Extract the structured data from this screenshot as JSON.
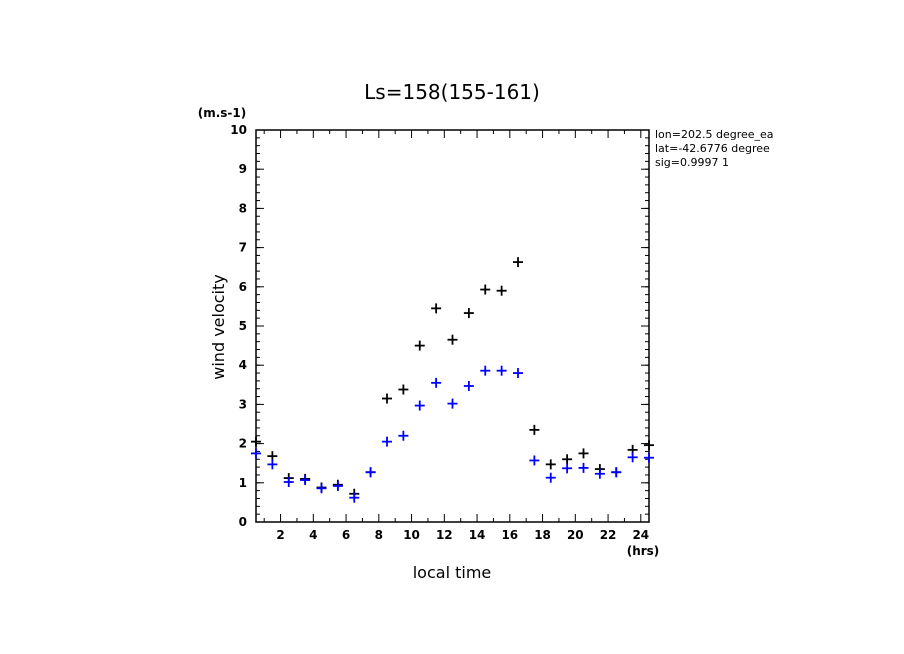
{
  "chart_data": {
    "type": "scatter",
    "title": "Ls=158(155-161)",
    "xlabel": "local time",
    "ylabel": "wind velocity",
    "x_unit": "(hrs)",
    "y_unit": "(m.s-1)",
    "xlim": [
      0.5,
      24.5
    ],
    "ylim": [
      0,
      10
    ],
    "x_ticks": [
      2,
      4,
      6,
      8,
      10,
      12,
      14,
      16,
      18,
      20,
      22,
      24
    ],
    "y_ticks": [
      0,
      1,
      2,
      3,
      4,
      5,
      6,
      7,
      8,
      9,
      10
    ],
    "annotations": [
      "lon=202.5 degree_ea",
      "lat=-42.6776 degree",
      "sig=0.9997 1"
    ],
    "series": [
      {
        "color": "#000000",
        "x": [
          0.5,
          1.5,
          2.5,
          3.5,
          4.5,
          5.5,
          6.5,
          7.5,
          8.5,
          9.5,
          10.5,
          11.5,
          12.5,
          13.5,
          14.5,
          15.5,
          16.5,
          17.5,
          18.5,
          19.5,
          20.5,
          21.5,
          22.5,
          23.5,
          24.5
        ],
        "values": [
          2.05,
          1.68,
          1.12,
          1.1,
          0.88,
          0.95,
          0.72,
          1.27,
          3.15,
          3.38,
          4.5,
          5.45,
          4.65,
          5.33,
          5.93,
          5.9,
          6.63,
          2.35,
          1.47,
          1.6,
          1.75,
          1.35,
          1.27,
          1.84,
          1.96
        ]
      },
      {
        "color": "#0000ff",
        "x": [
          0.5,
          1.5,
          2.5,
          3.5,
          4.5,
          5.5,
          6.5,
          7.5,
          8.5,
          9.5,
          10.5,
          11.5,
          12.5,
          13.5,
          14.5,
          15.5,
          16.5,
          17.5,
          18.5,
          19.5,
          20.5,
          21.5,
          22.5,
          23.5,
          24.5
        ],
        "values": [
          1.75,
          1.47,
          1.02,
          1.07,
          0.86,
          0.92,
          0.62,
          1.27,
          2.05,
          2.2,
          2.97,
          3.55,
          3.02,
          3.47,
          3.86,
          3.86,
          3.8,
          1.57,
          1.13,
          1.37,
          1.38,
          1.23,
          1.27,
          1.65,
          1.64
        ]
      }
    ]
  }
}
